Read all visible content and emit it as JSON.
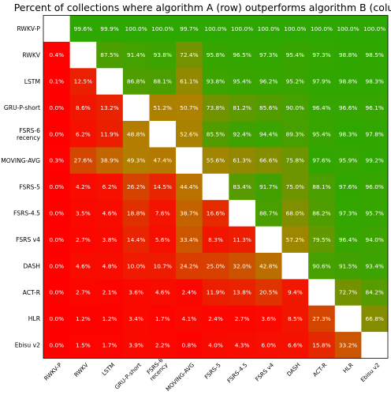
{
  "chart_data": {
    "type": "heatmap",
    "title": "Percent of collections where algorithm A (row) outperforms algorithm B (column)",
    "row_labels": [
      "RWKV-P",
      "RWKV",
      "LSTM",
      "GRU-P-short",
      "FSRS-6 recency",
      "MOVING-AVG",
      "FSRS-5",
      "FSRS-4.5",
      "FSRS v4",
      "DASH",
      "ACT-R",
      "HLR",
      "Ebisu v2"
    ],
    "col_labels": [
      "RWKV-P",
      "RWKV",
      "LSTM",
      "GRU-P-short",
      "FSRS-6 recency",
      "MOVING-AVG",
      "FSRS-5",
      "FSRS-4.5",
      "FSRS v4",
      "DASH",
      "ACT-R",
      "HLR",
      "Ebisu v2"
    ],
    "unit": "%",
    "color_scale": {
      "low": "#ff0000",
      "mid": "#b08000",
      "high": "#2ca800"
    },
    "values": [
      [
        null,
        99.6,
        99.9,
        100.0,
        100.0,
        99.7,
        100.0,
        100.0,
        100.0,
        100.0,
        100.0,
        100.0,
        100.0
      ],
      [
        0.4,
        null,
        87.5,
        91.4,
        93.8,
        72.4,
        95.8,
        96.5,
        97.3,
        95.4,
        97.3,
        98.8,
        98.5
      ],
      [
        0.1,
        12.5,
        null,
        86.8,
        88.1,
        61.1,
        93.8,
        95.4,
        96.2,
        95.2,
        97.9,
        98.8,
        98.3
      ],
      [
        0.0,
        8.6,
        13.2,
        null,
        51.2,
        50.7,
        73.8,
        81.2,
        85.6,
        90.0,
        96.4,
        96.6,
        96.1
      ],
      [
        0.0,
        6.2,
        11.9,
        48.8,
        null,
        52.6,
        85.5,
        92.4,
        94.4,
        89.3,
        95.4,
        98.3,
        97.8
      ],
      [
        0.3,
        27.6,
        38.9,
        49.3,
        47.4,
        null,
        55.6,
        61.3,
        66.6,
        75.8,
        97.6,
        95.9,
        99.2
      ],
      [
        0.0,
        4.2,
        6.2,
        26.2,
        14.5,
        44.4,
        null,
        83.4,
        91.7,
        75.0,
        88.1,
        97.6,
        96.0
      ],
      [
        0.0,
        3.5,
        4.6,
        18.8,
        7.6,
        38.7,
        16.6,
        null,
        88.7,
        68.0,
        86.2,
        97.3,
        95.7
      ],
      [
        0.0,
        2.7,
        3.8,
        14.4,
        5.6,
        33.4,
        8.3,
        11.3,
        null,
        57.2,
        79.5,
        96.4,
        94.0
      ],
      [
        0.0,
        4.6,
        4.8,
        10.0,
        10.7,
        24.2,
        25.0,
        32.0,
        42.8,
        null,
        90.6,
        91.5,
        93.4
      ],
      [
        0.0,
        2.7,
        2.1,
        3.6,
        4.6,
        2.4,
        11.9,
        13.8,
        20.5,
        9.4,
        null,
        72.7,
        84.2
      ],
      [
        0.0,
        1.2,
        1.2,
        3.4,
        1.7,
        4.1,
        2.4,
        2.7,
        3.6,
        8.5,
        27.3,
        null,
        66.8
      ],
      [
        0.0,
        1.5,
        1.7,
        3.9,
        2.2,
        0.8,
        4.0,
        4.3,
        6.0,
        6.6,
        15.8,
        33.2,
        null
      ]
    ]
  }
}
